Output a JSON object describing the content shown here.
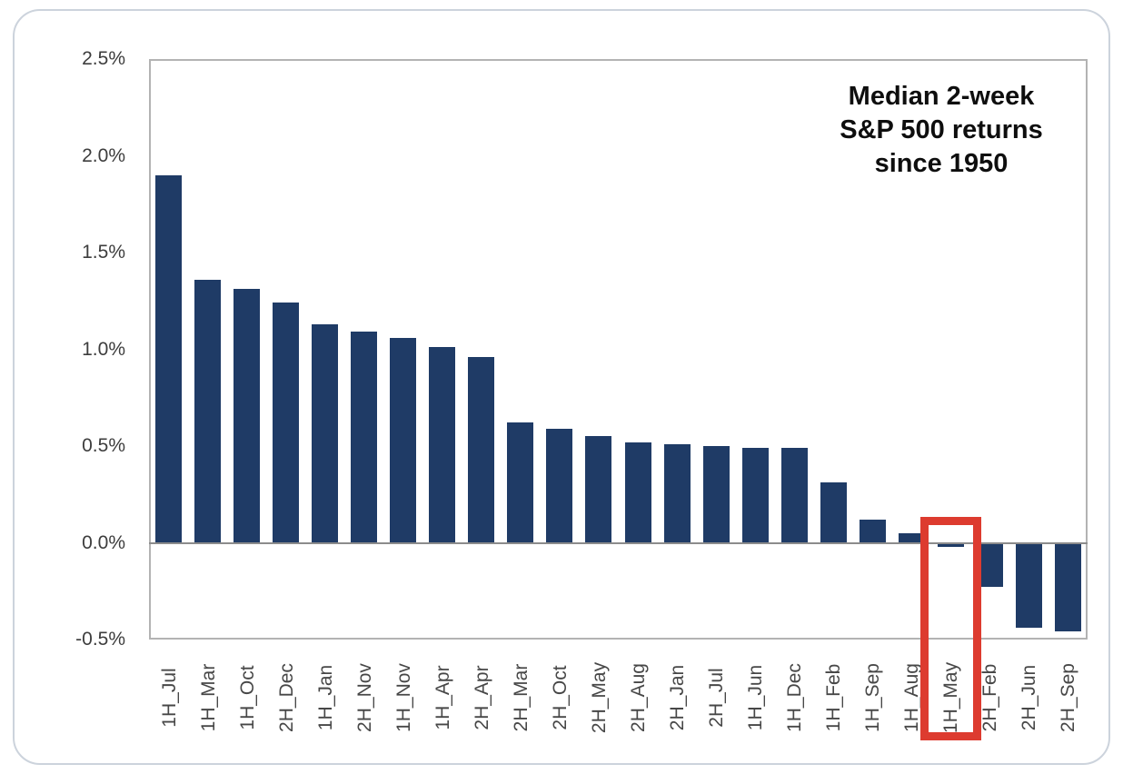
{
  "chart_data": {
    "type": "bar",
    "title": "Median 2-week S&P 500 returns since 1950",
    "title_lines": [
      "Median 2-week",
      "S&P 500 returns",
      "since 1950"
    ],
    "categories": [
      "1H_Jul",
      "1H_Mar",
      "1H_Oct",
      "2H_Dec",
      "1H_Jan",
      "2H_Nov",
      "1H_Nov",
      "1H_Apr",
      "2H_Apr",
      "2H_Mar",
      "2H_Oct",
      "2H_May",
      "2H_Aug",
      "2H_Jan",
      "2H_Jul",
      "1H_Jun",
      "1H_Dec",
      "1H_Feb",
      "1H_Sep",
      "1H_Aug",
      "1H_May",
      "2H_Feb",
      "2H_Jun",
      "2H_Sep"
    ],
    "values": [
      1.9,
      1.36,
      1.31,
      1.24,
      1.13,
      1.09,
      1.06,
      1.01,
      0.96,
      0.62,
      0.59,
      0.55,
      0.52,
      0.51,
      0.5,
      0.49,
      0.49,
      0.31,
      0.12,
      0.05,
      -0.02,
      -0.23,
      -0.44,
      -0.46
    ],
    "xlabel": "",
    "ylabel": "",
    "ytick_labels": [
      "2.5%",
      "2.0%",
      "1.5%",
      "1.0%",
      "0.5%",
      "0.0%",
      "-0.5%"
    ],
    "ytick_values": [
      2.5,
      2.0,
      1.5,
      1.0,
      0.5,
      0.0,
      -0.5
    ],
    "ylim": [
      -0.5,
      2.5
    ],
    "grid": "zero-line-only",
    "legend": "none",
    "bar_color": "#1f3b66",
    "highlight": {
      "category": "1H_May",
      "box_color": "#dd3b2f"
    }
  }
}
